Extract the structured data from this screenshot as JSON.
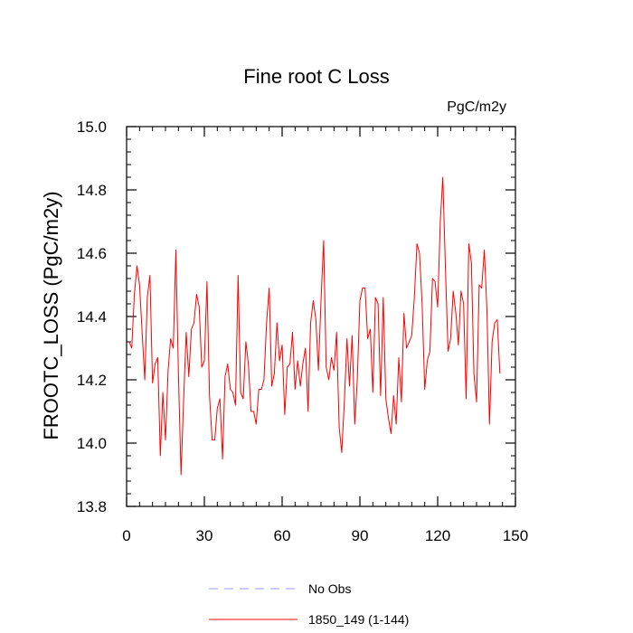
{
  "chart_data": {
    "type": "line",
    "title": "Fine root C Loss",
    "units": "PgC/m2y",
    "xlabel": "",
    "ylabel": "FROOTC_LOSS  (PgC/m2y)",
    "xlim": [
      0,
      150
    ],
    "ylim": [
      13.8,
      15.0
    ],
    "x_ticks": [
      "0",
      "30",
      "60",
      "90",
      "120",
      "150"
    ],
    "y_ticks": [
      "13.8",
      "14.0",
      "14.2",
      "14.4",
      "14.6",
      "14.8",
      "15.0"
    ],
    "grid": false,
    "legend_position": "bottom",
    "legend": [
      {
        "label": "No Obs",
        "color": "#9999ff",
        "dash": true
      },
      {
        "label": "1850_149 (1-144)",
        "color": "#ff0000",
        "dash": false
      }
    ],
    "series": [
      {
        "name": "1850_149 (1-144)",
        "color": "#ff0000",
        "x_start": 1,
        "values": [
          14.32,
          14.3,
          14.47,
          14.56,
          14.5,
          14.35,
          14.2,
          14.46,
          14.53,
          14.19,
          14.25,
          14.27,
          13.96,
          14.16,
          14.01,
          14.23,
          14.33,
          14.3,
          14.61,
          14.22,
          13.9,
          14.14,
          14.35,
          14.21,
          14.36,
          14.38,
          14.47,
          14.43,
          14.24,
          14.26,
          14.51,
          14.15,
          14.01,
          14.01,
          14.11,
          14.14,
          13.95,
          14.21,
          14.25,
          14.17,
          14.16,
          14.12,
          14.53,
          14.16,
          14.14,
          14.32,
          14.25,
          14.1,
          14.1,
          14.06,
          14.17,
          14.17,
          14.2,
          14.38,
          14.49,
          14.18,
          14.22,
          14.38,
          14.26,
          14.31,
          14.09,
          14.24,
          14.25,
          14.35,
          14.17,
          14.26,
          14.18,
          14.25,
          14.3,
          14.1,
          14.38,
          14.45,
          14.39,
          14.23,
          14.45,
          14.64,
          14.24,
          14.2,
          14.27,
          14.23,
          14.35,
          14.05,
          13.97,
          14.13,
          14.33,
          14.18,
          14.34,
          14.06,
          14.2,
          14.45,
          14.49,
          14.49,
          14.33,
          14.36,
          14.16,
          14.46,
          14.44,
          14.15,
          14.46,
          14.14,
          14.08,
          14.03,
          14.15,
          14.06,
          14.27,
          14.13,
          14.41,
          14.3,
          14.32,
          14.34,
          14.46,
          14.63,
          14.6,
          14.44,
          14.17,
          14.26,
          14.29,
          14.52,
          14.51,
          14.43,
          14.7,
          14.84,
          14.55,
          14.29,
          14.33,
          14.48,
          14.41,
          14.31,
          14.48,
          14.44,
          14.14,
          14.63,
          14.57,
          14.22,
          14.13,
          14.5,
          14.49,
          14.61,
          14.42,
          14.06,
          14.32,
          14.38,
          14.39,
          14.22
        ]
      }
    ]
  }
}
